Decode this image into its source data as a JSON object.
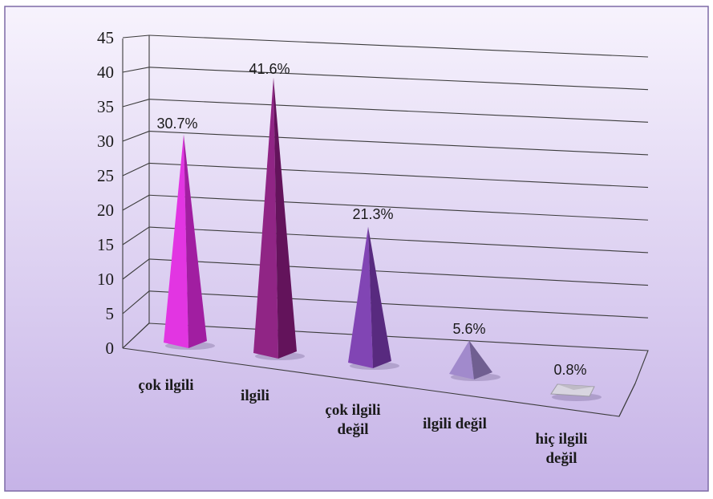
{
  "chart_data": {
    "type": "bar",
    "categories": [
      "çok ilgili",
      "ilgili",
      "çok ilgili değil",
      "ilgili değil",
      "hiç ilgili değil"
    ],
    "category_lines": [
      [
        "çok ilgili"
      ],
      [
        "ilgili"
      ],
      [
        "çok ilgili",
        "değil"
      ],
      [
        "ilgili değil"
      ],
      [
        "hiç ilgili",
        "değil"
      ]
    ],
    "values": [
      30.7,
      41.6,
      21.3,
      5.6,
      0.8
    ],
    "data_labels": [
      "30.7%",
      "41.6%",
      "21.3%",
      "5.6%",
      "0.8%"
    ],
    "y_ticks": [
      "0",
      "5",
      "10",
      "15",
      "20",
      "25",
      "30",
      "35",
      "40",
      "45"
    ],
    "ylim": [
      0,
      45
    ],
    "grid": true,
    "shape": "3d-pyramid",
    "colors": {
      "background": "#c9b8e9",
      "border": "#7d6aa6",
      "gridline": "#3c3c3c",
      "series": [
        "#e02ae0",
        "#8a1a7f",
        "#7a3bb0",
        "#9c84c9",
        "#d4d0dc"
      ]
    }
  }
}
